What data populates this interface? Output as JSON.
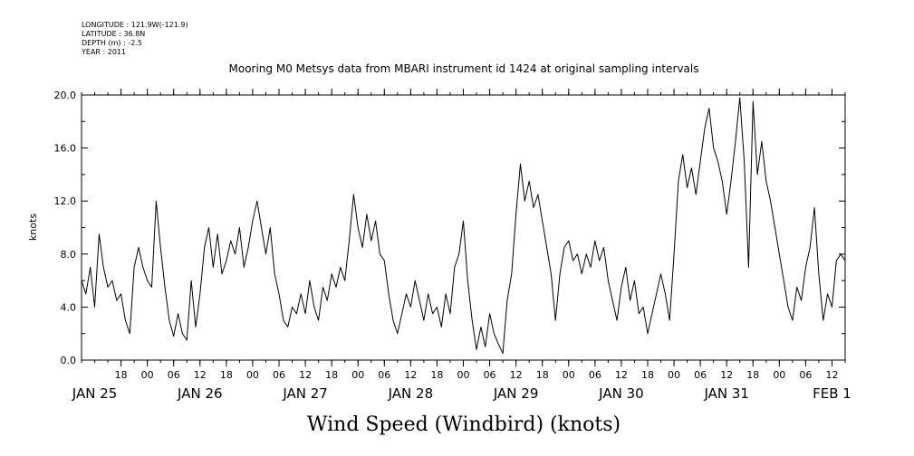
{
  "header": {
    "longitude": "LONGITUDE : 121.9W(-121.9)",
    "latitude": "LATITUDE : 36.8N",
    "depth": "DEPTH (m) : -2.5",
    "year": "YEAR : 2011"
  },
  "chart_data": {
    "type": "line",
    "title": "Mooring M0 Metsys data from MBARI instrument id 1424 at original sampling intervals",
    "xlabel": "Wind Speed (Windbird) (knots)",
    "ylabel": "knots",
    "ylim": [
      0,
      20
    ],
    "yticks": [
      0,
      4,
      8,
      12,
      16,
      20
    ],
    "ytick_labels": [
      "0.0",
      "4.0",
      "8.0",
      "12.0",
      "16.0",
      "20.0"
    ],
    "xlim": [
      "2011-01-25T09:00",
      "2011-02-01T15:00"
    ],
    "hour_ticks": [
      {
        "time": "2011-01-25T18:00",
        "label": "18"
      },
      {
        "time": "2011-01-26T00:00",
        "label": "00"
      },
      {
        "time": "2011-01-26T06:00",
        "label": "06"
      },
      {
        "time": "2011-01-26T12:00",
        "label": "12"
      },
      {
        "time": "2011-01-26T18:00",
        "label": "18"
      },
      {
        "time": "2011-01-27T00:00",
        "label": "00"
      },
      {
        "time": "2011-01-27T06:00",
        "label": "06"
      },
      {
        "time": "2011-01-27T12:00",
        "label": "12"
      },
      {
        "time": "2011-01-27T18:00",
        "label": "18"
      },
      {
        "time": "2011-01-28T00:00",
        "label": "00"
      },
      {
        "time": "2011-01-28T06:00",
        "label": "06"
      },
      {
        "time": "2011-01-28T12:00",
        "label": "12"
      },
      {
        "time": "2011-01-28T18:00",
        "label": "18"
      },
      {
        "time": "2011-01-29T00:00",
        "label": "00"
      },
      {
        "time": "2011-01-29T06:00",
        "label": "06"
      },
      {
        "time": "2011-01-29T12:00",
        "label": "12"
      },
      {
        "time": "2011-01-29T18:00",
        "label": "18"
      },
      {
        "time": "2011-01-30T00:00",
        "label": "00"
      },
      {
        "time": "2011-01-30T06:00",
        "label": "06"
      },
      {
        "time": "2011-01-30T12:00",
        "label": "12"
      },
      {
        "time": "2011-01-30T18:00",
        "label": "18"
      },
      {
        "time": "2011-01-31T00:00",
        "label": "00"
      },
      {
        "time": "2011-01-31T06:00",
        "label": "06"
      },
      {
        "time": "2011-01-31T12:00",
        "label": "12"
      },
      {
        "time": "2011-01-31T18:00",
        "label": "18"
      },
      {
        "time": "2011-02-01T00:00",
        "label": "00"
      },
      {
        "time": "2011-02-01T06:00",
        "label": "06"
      },
      {
        "time": "2011-02-01T12:00",
        "label": "12"
      }
    ],
    "day_labels": [
      {
        "time": "2011-01-25T12:00",
        "label": "JAN 25"
      },
      {
        "time": "2011-01-26T12:00",
        "label": "JAN 26"
      },
      {
        "time": "2011-01-27T12:00",
        "label": "JAN 27"
      },
      {
        "time": "2011-01-28T12:00",
        "label": "JAN 28"
      },
      {
        "time": "2011-01-29T12:00",
        "label": "JAN 29"
      },
      {
        "time": "2011-01-30T12:00",
        "label": "JAN 30"
      },
      {
        "time": "2011-01-31T12:00",
        "label": "JAN 31"
      },
      {
        "time": "2011-02-01T12:00",
        "label": "FEB  1"
      }
    ],
    "series": [
      {
        "color": "#000000",
        "points": [
          [
            "2011-01-25T09:00",
            6.0
          ],
          [
            "2011-01-25T10:00",
            5.0
          ],
          [
            "2011-01-25T11:00",
            7.0
          ],
          [
            "2011-01-25T12:00",
            4.0
          ],
          [
            "2011-01-25T13:00",
            9.5
          ],
          [
            "2011-01-25T14:00",
            7.0
          ],
          [
            "2011-01-25T15:00",
            5.5
          ],
          [
            "2011-01-25T16:00",
            6.0
          ],
          [
            "2011-01-25T17:00",
            4.5
          ],
          [
            "2011-01-25T18:00",
            5.0
          ],
          [
            "2011-01-25T19:00",
            3.0
          ],
          [
            "2011-01-25T20:00",
            2.0
          ],
          [
            "2011-01-25T21:00",
            7.0
          ],
          [
            "2011-01-25T22:00",
            8.5
          ],
          [
            "2011-01-25T23:00",
            7.0
          ],
          [
            "2011-01-26T00:00",
            6.0
          ],
          [
            "2011-01-26T01:00",
            5.5
          ],
          [
            "2011-01-26T02:00",
            12.0
          ],
          [
            "2011-01-26T03:00",
            8.5
          ],
          [
            "2011-01-26T04:00",
            5.5
          ],
          [
            "2011-01-26T05:00",
            3.0
          ],
          [
            "2011-01-26T06:00",
            1.8
          ],
          [
            "2011-01-26T07:00",
            3.5
          ],
          [
            "2011-01-26T08:00",
            2.0
          ],
          [
            "2011-01-26T09:00",
            1.5
          ],
          [
            "2011-01-26T10:00",
            6.0
          ],
          [
            "2011-01-26T11:00",
            2.5
          ],
          [
            "2011-01-26T12:00",
            5.0
          ],
          [
            "2011-01-26T13:00",
            8.5
          ],
          [
            "2011-01-26T14:00",
            10.0
          ],
          [
            "2011-01-26T15:00",
            7.0
          ],
          [
            "2011-01-26T16:00",
            9.5
          ],
          [
            "2011-01-26T17:00",
            6.5
          ],
          [
            "2011-01-26T18:00",
            7.5
          ],
          [
            "2011-01-26T19:00",
            9.0
          ],
          [
            "2011-01-26T20:00",
            8.0
          ],
          [
            "2011-01-26T21:00",
            10.0
          ],
          [
            "2011-01-26T22:00",
            7.0
          ],
          [
            "2011-01-26T23:00",
            8.5
          ],
          [
            "2011-01-27T00:00",
            10.5
          ],
          [
            "2011-01-27T01:00",
            12.0
          ],
          [
            "2011-01-27T02:00",
            10.0
          ],
          [
            "2011-01-27T03:00",
            8.0
          ],
          [
            "2011-01-27T04:00",
            10.0
          ],
          [
            "2011-01-27T05:00",
            6.5
          ],
          [
            "2011-01-27T06:00",
            5.0
          ],
          [
            "2011-01-27T07:00",
            3.0
          ],
          [
            "2011-01-27T08:00",
            2.5
          ],
          [
            "2011-01-27T09:00",
            4.0
          ],
          [
            "2011-01-27T10:00",
            3.5
          ],
          [
            "2011-01-27T11:00",
            5.0
          ],
          [
            "2011-01-27T12:00",
            3.5
          ],
          [
            "2011-01-27T13:00",
            6.0
          ],
          [
            "2011-01-27T14:00",
            4.0
          ],
          [
            "2011-01-27T15:00",
            3.0
          ],
          [
            "2011-01-27T16:00",
            5.5
          ],
          [
            "2011-01-27T17:00",
            4.5
          ],
          [
            "2011-01-27T18:00",
            6.5
          ],
          [
            "2011-01-27T19:00",
            5.5
          ],
          [
            "2011-01-27T20:00",
            7.0
          ],
          [
            "2011-01-27T21:00",
            6.0
          ],
          [
            "2011-01-27T22:00",
            9.0
          ],
          [
            "2011-01-27T23:00",
            12.5
          ],
          [
            "2011-01-28T00:00",
            10.0
          ],
          [
            "2011-01-28T01:00",
            8.5
          ],
          [
            "2011-01-28T02:00",
            11.0
          ],
          [
            "2011-01-28T03:00",
            9.0
          ],
          [
            "2011-01-28T04:00",
            10.5
          ],
          [
            "2011-01-28T05:00",
            8.0
          ],
          [
            "2011-01-28T06:00",
            7.5
          ],
          [
            "2011-01-28T07:00",
            5.0
          ],
          [
            "2011-01-28T08:00",
            3.0
          ],
          [
            "2011-01-28T09:00",
            2.0
          ],
          [
            "2011-01-28T10:00",
            3.5
          ],
          [
            "2011-01-28T11:00",
            5.0
          ],
          [
            "2011-01-28T12:00",
            4.0
          ],
          [
            "2011-01-28T13:00",
            6.0
          ],
          [
            "2011-01-28T14:00",
            4.5
          ],
          [
            "2011-01-28T15:00",
            3.0
          ],
          [
            "2011-01-28T16:00",
            5.0
          ],
          [
            "2011-01-28T17:00",
            3.5
          ],
          [
            "2011-01-28T18:00",
            4.0
          ],
          [
            "2011-01-28T19:00",
            2.5
          ],
          [
            "2011-01-28T20:00",
            5.0
          ],
          [
            "2011-01-28T21:00",
            3.5
          ],
          [
            "2011-01-28T22:00",
            7.0
          ],
          [
            "2011-01-28T23:00",
            8.0
          ],
          [
            "2011-01-29T00:00",
            10.5
          ],
          [
            "2011-01-29T01:00",
            6.0
          ],
          [
            "2011-01-29T02:00",
            3.0
          ],
          [
            "2011-01-29T03:00",
            0.8
          ],
          [
            "2011-01-29T04:00",
            2.5
          ],
          [
            "2011-01-29T05:00",
            1.0
          ],
          [
            "2011-01-29T06:00",
            3.5
          ],
          [
            "2011-01-29T07:00",
            2.0
          ],
          [
            "2011-01-29T08:00",
            1.2
          ],
          [
            "2011-01-29T09:00",
            0.5
          ],
          [
            "2011-01-29T10:00",
            4.5
          ],
          [
            "2011-01-29T11:00",
            6.5
          ],
          [
            "2011-01-29T12:00",
            11.0
          ],
          [
            "2011-01-29T13:00",
            14.8
          ],
          [
            "2011-01-29T14:00",
            12.0
          ],
          [
            "2011-01-29T15:00",
            13.5
          ],
          [
            "2011-01-29T16:00",
            11.5
          ],
          [
            "2011-01-29T17:00",
            12.5
          ],
          [
            "2011-01-29T18:00",
            10.5
          ],
          [
            "2011-01-29T19:00",
            8.5
          ],
          [
            "2011-01-29T20:00",
            6.5
          ],
          [
            "2011-01-29T21:00",
            3.0
          ],
          [
            "2011-01-29T22:00",
            6.5
          ],
          [
            "2011-01-29T23:00",
            8.5
          ],
          [
            "2011-01-30T00:00",
            9.0
          ],
          [
            "2011-01-30T01:00",
            7.5
          ],
          [
            "2011-01-30T02:00",
            8.0
          ],
          [
            "2011-01-30T03:00",
            6.5
          ],
          [
            "2011-01-30T04:00",
            8.0
          ],
          [
            "2011-01-30T05:00",
            7.0
          ],
          [
            "2011-01-30T06:00",
            9.0
          ],
          [
            "2011-01-30T07:00",
            7.5
          ],
          [
            "2011-01-30T08:00",
            8.5
          ],
          [
            "2011-01-30T09:00",
            6.0
          ],
          [
            "2011-01-30T10:00",
            4.5
          ],
          [
            "2011-01-30T11:00",
            3.0
          ],
          [
            "2011-01-30T12:00",
            5.5
          ],
          [
            "2011-01-30T13:00",
            7.0
          ],
          [
            "2011-01-30T14:00",
            4.5
          ],
          [
            "2011-01-30T15:00",
            6.0
          ],
          [
            "2011-01-30T16:00",
            3.5
          ],
          [
            "2011-01-30T17:00",
            4.0
          ],
          [
            "2011-01-30T18:00",
            2.0
          ],
          [
            "2011-01-30T19:00",
            3.5
          ],
          [
            "2011-01-30T20:00",
            5.0
          ],
          [
            "2011-01-30T21:00",
            6.5
          ],
          [
            "2011-01-30T22:00",
            5.0
          ],
          [
            "2011-01-30T23:00",
            3.0
          ],
          [
            "2011-01-31T00:00",
            8.0
          ],
          [
            "2011-01-31T01:00",
            13.5
          ],
          [
            "2011-01-31T02:00",
            15.5
          ],
          [
            "2011-01-31T03:00",
            13.0
          ],
          [
            "2011-01-31T04:00",
            14.5
          ],
          [
            "2011-01-31T05:00",
            12.5
          ],
          [
            "2011-01-31T06:00",
            15.0
          ],
          [
            "2011-01-31T07:00",
            17.5
          ],
          [
            "2011-01-31T08:00",
            19.0
          ],
          [
            "2011-01-31T09:00",
            16.0
          ],
          [
            "2011-01-31T10:00",
            15.0
          ],
          [
            "2011-01-31T11:00",
            13.5
          ],
          [
            "2011-01-31T12:00",
            11.0
          ],
          [
            "2011-01-31T13:00",
            13.5
          ],
          [
            "2011-01-31T14:00",
            16.5
          ],
          [
            "2011-01-31T15:00",
            19.8
          ],
          [
            "2011-01-31T16:00",
            15.0
          ],
          [
            "2011-01-31T17:00",
            7.0
          ],
          [
            "2011-01-31T18:00",
            19.5
          ],
          [
            "2011-01-31T19:00",
            14.0
          ],
          [
            "2011-01-31T20:00",
            16.5
          ],
          [
            "2011-01-31T21:00",
            13.5
          ],
          [
            "2011-01-31T22:00",
            12.0
          ],
          [
            "2011-01-31T23:00",
            10.0
          ],
          [
            "2011-02-01T00:00",
            8.0
          ],
          [
            "2011-02-01T01:00",
            6.0
          ],
          [
            "2011-02-01T02:00",
            4.0
          ],
          [
            "2011-02-01T03:00",
            3.0
          ],
          [
            "2011-02-01T04:00",
            5.5
          ],
          [
            "2011-02-01T05:00",
            4.5
          ],
          [
            "2011-02-01T06:00",
            7.0
          ],
          [
            "2011-02-01T07:00",
            8.5
          ],
          [
            "2011-02-01T08:00",
            11.5
          ],
          [
            "2011-02-01T09:00",
            6.5
          ],
          [
            "2011-02-01T10:00",
            3.0
          ],
          [
            "2011-02-01T11:00",
            5.0
          ],
          [
            "2011-02-01T12:00",
            4.0
          ],
          [
            "2011-02-01T13:00",
            7.5
          ],
          [
            "2011-02-01T14:00",
            8.0
          ],
          [
            "2011-02-01T15:00",
            7.5
          ]
        ]
      }
    ]
  }
}
